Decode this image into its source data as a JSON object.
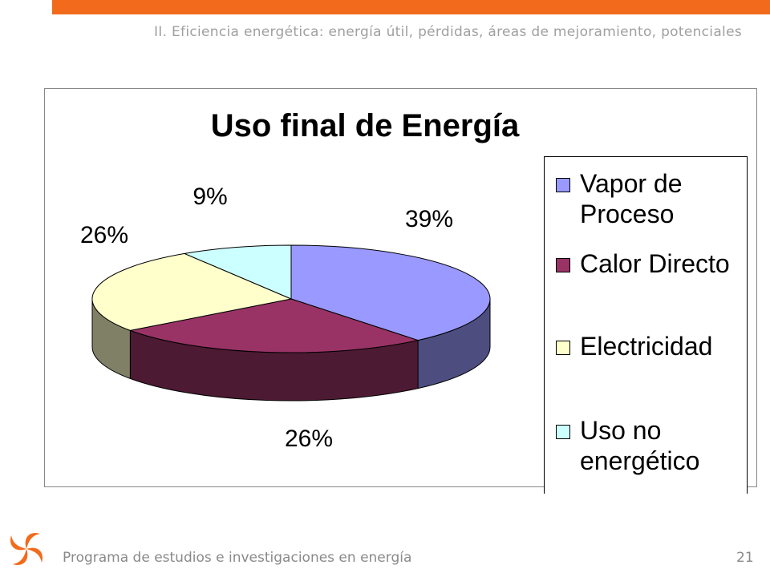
{
  "slide": {
    "header": "II. Eficiencia energética: energía útil, pérdidas, áreas de mejoramiento, potenciales",
    "footer": "Programa de estudios e investigaciones en energía",
    "page_number": 21
  },
  "chart_data": {
    "type": "pie",
    "title": "Uso final de Energía",
    "categories": [
      "Vapor de Proceso",
      "Calor Directo",
      "Electricidad",
      "Uso no energético"
    ],
    "values": [
      39,
      26,
      26,
      9
    ],
    "value_labels": [
      "39%",
      "26%",
      "26%",
      "9%"
    ],
    "colors": [
      "#9999ff",
      "#993366",
      "#ffffcc",
      "#ccffff"
    ],
    "legend": "right"
  }
}
